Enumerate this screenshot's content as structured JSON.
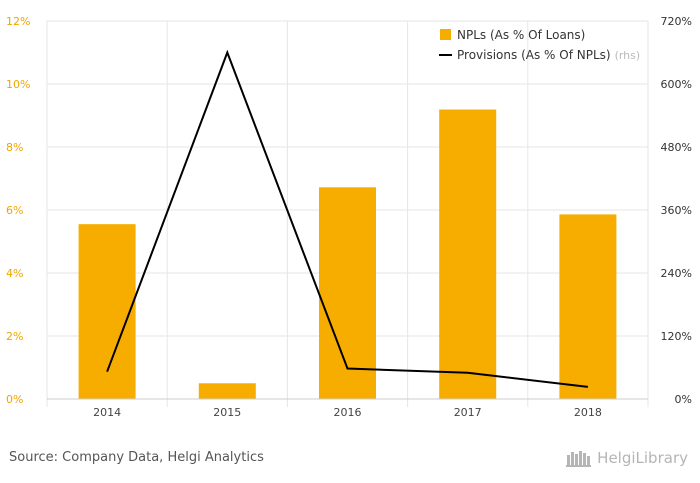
{
  "chart_data": {
    "type": "bar",
    "categories": [
      "2014",
      "2015",
      "2016",
      "2017",
      "2018"
    ],
    "series": [
      {
        "name": "NPLs (As % Of Loans)",
        "type": "bar",
        "axis": "left",
        "values": [
          5.55,
          0.5,
          6.72,
          9.19,
          5.86
        ]
      },
      {
        "name": "Provisions (As % Of NPLs)",
        "type": "line",
        "axis": "right",
        "legend_suffix": "(rhs)",
        "values": [
          52,
          660,
          58,
          50,
          23
        ]
      }
    ],
    "left_axis": {
      "ylim": [
        0,
        12
      ],
      "ticks": [
        "0%",
        "2%",
        "4%",
        "6%",
        "8%",
        "10%",
        "12%"
      ]
    },
    "right_axis": {
      "ylim": [
        0,
        720
      ],
      "ticks": [
        "0%",
        "120%",
        "240%",
        "360%",
        "480%",
        "600%",
        "720%"
      ]
    },
    "legend_placement": "top-right",
    "grid": true,
    "colors": {
      "bar": "#f7ad00",
      "line": "#000000",
      "left_ticks": "#f0a500",
      "grid": "#e6e6e6"
    }
  },
  "footer": {
    "source": "Source: Company Data, Helgi Analytics",
    "brand": "HelgiLibrary"
  }
}
